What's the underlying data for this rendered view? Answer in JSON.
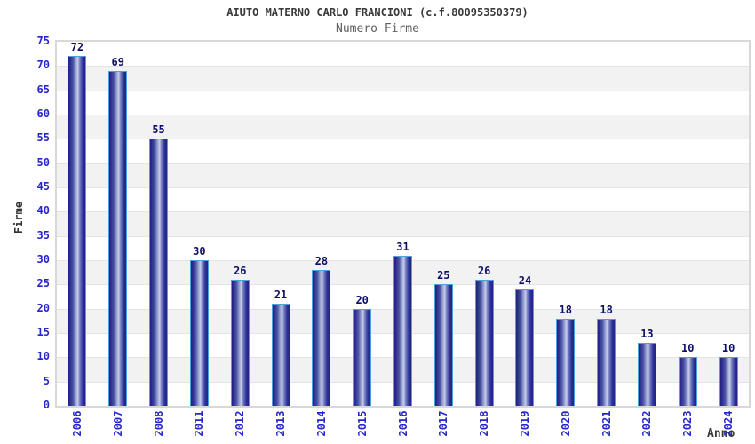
{
  "chart_data": {
    "type": "bar",
    "title": "AIUTO MATERNO CARLO FRANCIONI (c.f.80095350379)",
    "subtitle": "Numero Firme",
    "xlabel": "Anno",
    "ylabel": "Firme",
    "categories": [
      "2006",
      "2007",
      "2008",
      "2011",
      "2012",
      "2013",
      "2014",
      "2015",
      "2016",
      "2017",
      "2018",
      "2019",
      "2020",
      "2021",
      "2022",
      "2023",
      "2024"
    ],
    "values": [
      72,
      69,
      55,
      30,
      26,
      21,
      28,
      20,
      31,
      25,
      26,
      24,
      18,
      18,
      13,
      10,
      10
    ],
    "ylim": [
      0,
      75
    ],
    "ytick_step": 5,
    "legend": "none",
    "grid": "horizontal alternating bands every 5 units",
    "colors": {
      "bar_edge_dark": "#23237f",
      "bar_mid": "#4c55a5",
      "bar_light_center": "#c7cde9",
      "bar_border": "#4da0dc",
      "band_gray": "#f2f2f2",
      "gridline": "#e4e4e4",
      "plot_border": "#d8d8d8",
      "tick_text": "#2626cc",
      "value_text": "#0d0d66",
      "title_text": "#3a3a3a",
      "subtitle_text": "#606060",
      "axis_label_text": "#333333"
    }
  }
}
